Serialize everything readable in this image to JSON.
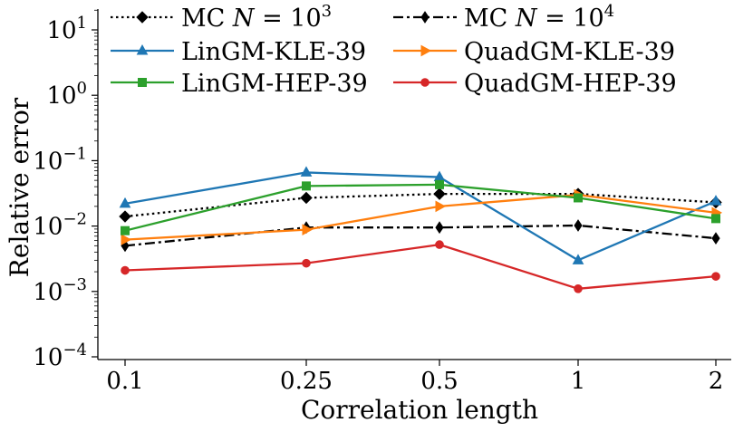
{
  "chart_data": {
    "type": "line",
    "yscale": "log",
    "xlabel": "Correlation length",
    "ylabel": "Relative error",
    "categories": [
      "0.1",
      "0.25",
      "0.5",
      "1",
      "2"
    ],
    "ylim": [
      0.0001,
      20
    ],
    "yticks": [
      {
        "value": 0.0001,
        "base": "10",
        "exp": "−4"
      },
      {
        "value": 0.001,
        "base": "10",
        "exp": "−3"
      },
      {
        "value": 0.01,
        "base": "10",
        "exp": "−2"
      },
      {
        "value": 0.1,
        "base": "10",
        "exp": "−1"
      },
      {
        "value": 1,
        "base": "10",
        "exp": "0"
      },
      {
        "value": 10,
        "base": "10",
        "exp": "1"
      }
    ],
    "legend_position": "top",
    "series": [
      {
        "name": "MC N = 10^3",
        "label_main": "MC ",
        "label_var": "N",
        "label_eq": " = 10",
        "label_exp": "3",
        "color": "#000000",
        "dash": "dotted",
        "marker": "diamond",
        "values": [
          0.014,
          0.027,
          0.031,
          0.031,
          0.023
        ]
      },
      {
        "name": "MC N = 10^4",
        "label_main": "MC ",
        "label_var": "N",
        "label_eq": " = 10",
        "label_exp": "4",
        "color": "#000000",
        "dash": "dashdot",
        "marker": "thin-diamond",
        "values": [
          0.005,
          0.0095,
          0.0095,
          0.0102,
          0.0065
        ]
      },
      {
        "name": "LinGM-KLE-39",
        "label_main": "LinGM-KLE-39",
        "color": "#1f77b4",
        "dash": "solid",
        "marker": "triangle",
        "values": [
          0.022,
          0.066,
          0.056,
          0.003,
          0.024
        ]
      },
      {
        "name": "QuadGM-KLE-39",
        "label_main": "QuadGM-KLE-39",
        "color": "#ff7f0e",
        "dash": "solid",
        "marker": "triangle-right",
        "values": [
          0.0062,
          0.0088,
          0.02,
          0.03,
          0.016
        ]
      },
      {
        "name": "LinGM-HEP-39",
        "label_main": "LinGM-HEP-39",
        "color": "#2ca02c",
        "dash": "solid",
        "marker": "square",
        "values": [
          0.0085,
          0.041,
          0.043,
          0.027,
          0.013
        ]
      },
      {
        "name": "QuadGM-HEP-39",
        "label_main": "QuadGM-HEP-39",
        "color": "#d62728",
        "dash": "solid",
        "marker": "circle",
        "values": [
          0.0021,
          0.0027,
          0.0052,
          0.0011,
          0.0017
        ]
      }
    ]
  }
}
